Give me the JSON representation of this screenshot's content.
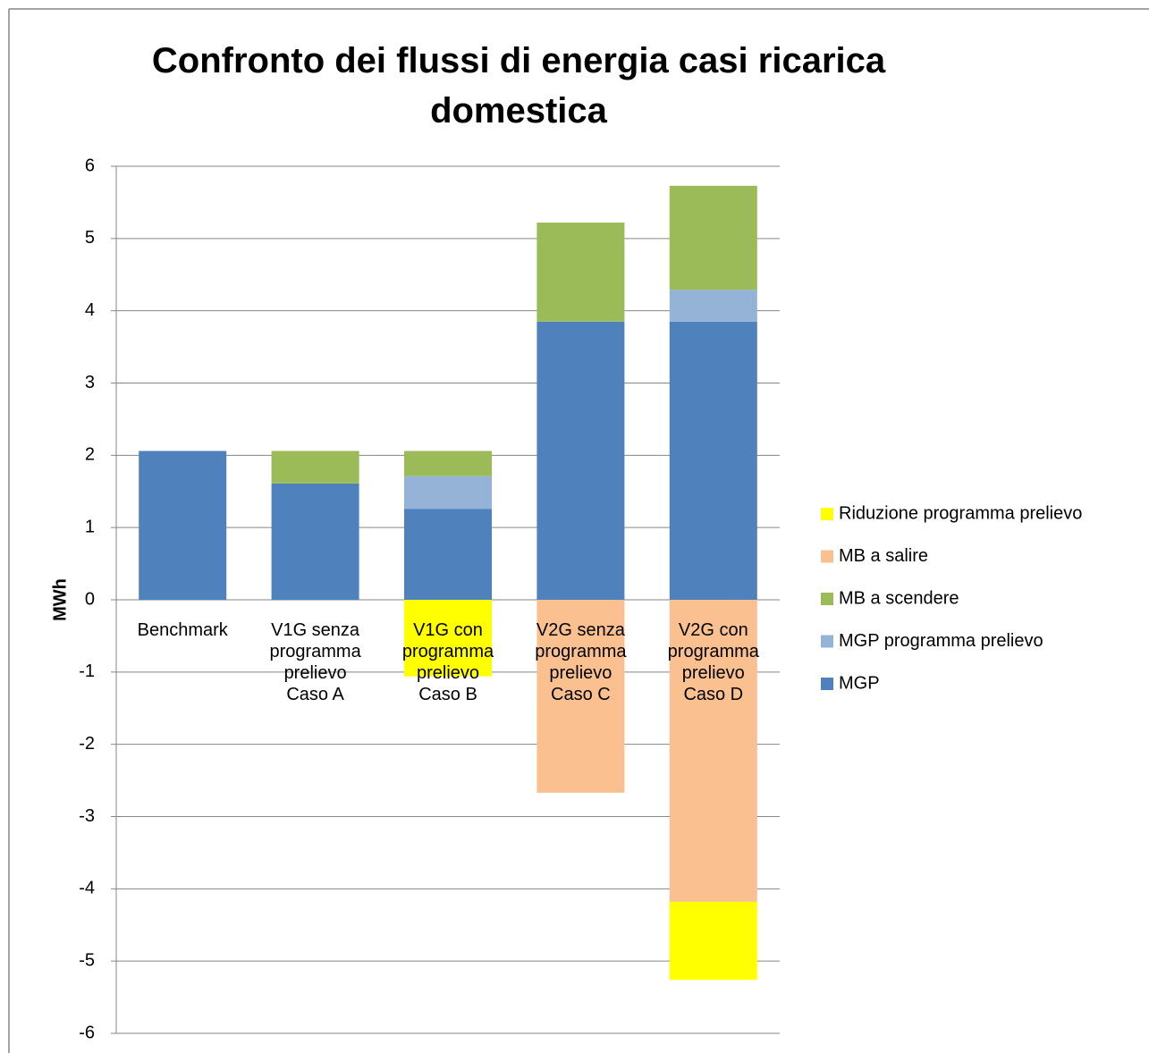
{
  "chart_data": {
    "type": "stacked_bar",
    "title": "Confronto dei flussi di energia casi ricarica domestica",
    "y_label": "MWh",
    "categories": [
      "Benchmark",
      "V1G senza programma prelievo Caso A",
      "V1G con programma prelievo Caso B",
      "V2G senza programma prelievo Caso C",
      "V2G con programma prelievo Caso D"
    ],
    "series": [
      {
        "name": "MGP",
        "color": "#4f81bd",
        "values": [
          2.06,
          1.61,
          1.26,
          3.85,
          3.85
        ]
      },
      {
        "name": "MGP programma prelievo",
        "color": "#95b3d7",
        "values": [
          0,
          0,
          0.45,
          0,
          0.44
        ]
      },
      {
        "name": "MB a scendere",
        "color": "#9bbb59",
        "values": [
          0,
          0.45,
          0.35,
          1.37,
          1.44
        ]
      },
      {
        "name": "MB a salire",
        "color": "#fac090",
        "values": [
          0,
          0,
          0,
          -2.67,
          -4.18
        ]
      },
      {
        "name": "Riduzione programma prelievo",
        "color": "#ffff00",
        "values": [
          0,
          0,
          -1.06,
          0,
          -1.08
        ]
      }
    ],
    "ylim": [
      -6,
      6
    ],
    "yticks": [
      -6,
      -5,
      -4,
      -3,
      -2,
      -1,
      0,
      1,
      2,
      3,
      4,
      5,
      6
    ],
    "grid": true,
    "legend": "right"
  }
}
